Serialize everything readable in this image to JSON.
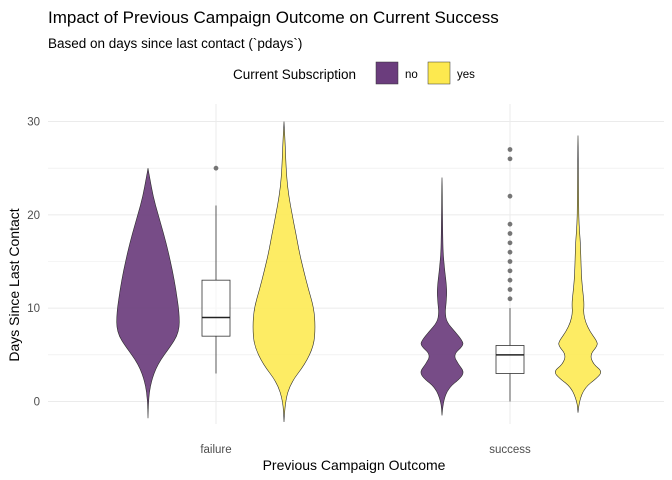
{
  "chart_data": {
    "type": "violin",
    "title": "Impact of Previous Campaign Outcome on Current Success",
    "subtitle": "Based on days since last contact (`pdays`)",
    "xlabel": "Previous Campaign Outcome",
    "ylabel": "Days Since Last Contact",
    "categories": [
      "failure",
      "success"
    ],
    "ylim": [
      -2.5,
      31
    ],
    "yticks": [
      0,
      10,
      20,
      30
    ],
    "grid": true,
    "legend": {
      "title": "Current Subscription",
      "position": "top",
      "entries": [
        {
          "label": "no",
          "color": "#6b3d7d"
        },
        {
          "label": "yes",
          "color": "#fde94f"
        }
      ]
    },
    "series": [
      {
        "name": "no",
        "color": "#6b3d7d"
      },
      {
        "name": "yes",
        "color": "#fde94f"
      }
    ],
    "violins": [
      {
        "category": "failure",
        "group": "no",
        "ymin": -1.8,
        "ymax": 25,
        "profile": [
          [
            -1.8,
            0.0
          ],
          [
            0,
            0.01
          ],
          [
            2,
            0.08
          ],
          [
            4,
            0.28
          ],
          [
            6,
            0.68
          ],
          [
            7,
            0.85
          ],
          [
            8,
            0.92
          ],
          [
            9,
            0.92
          ],
          [
            10,
            0.9
          ],
          [
            12,
            0.82
          ],
          [
            14,
            0.72
          ],
          [
            16,
            0.6
          ],
          [
            18,
            0.46
          ],
          [
            20,
            0.3
          ],
          [
            22,
            0.15
          ],
          [
            24,
            0.05
          ],
          [
            25,
            0.0
          ]
        ]
      },
      {
        "category": "failure",
        "group": "yes",
        "ymin": -2.2,
        "ymax": 30,
        "profile": [
          [
            -2.2,
            0.0
          ],
          [
            0,
            0.03
          ],
          [
            2,
            0.2
          ],
          [
            4,
            0.62
          ],
          [
            6,
            0.88
          ],
          [
            8,
            0.92
          ],
          [
            10,
            0.88
          ],
          [
            12,
            0.72
          ],
          [
            14,
            0.58
          ],
          [
            16,
            0.45
          ],
          [
            18,
            0.35
          ],
          [
            20,
            0.24
          ],
          [
            22,
            0.14
          ],
          [
            24,
            0.08
          ],
          [
            26,
            0.05
          ],
          [
            28,
            0.03
          ],
          [
            30,
            0.0
          ]
        ]
      },
      {
        "category": "success",
        "group": "no",
        "ymin": -1.5,
        "ymax": 24,
        "profile": [
          [
            -1.5,
            0.0
          ],
          [
            0,
            0.03
          ],
          [
            1.5,
            0.2
          ],
          [
            2.5,
            0.55
          ],
          [
            3.2,
            0.65
          ],
          [
            4,
            0.48
          ],
          [
            5,
            0.33
          ],
          [
            6,
            0.63
          ],
          [
            6.5,
            0.6
          ],
          [
            7.5,
            0.38
          ],
          [
            8.5,
            0.14
          ],
          [
            9.5,
            0.09
          ],
          [
            10.5,
            0.12
          ],
          [
            11.5,
            0.14
          ],
          [
            12.5,
            0.13
          ],
          [
            14,
            0.08
          ],
          [
            16,
            0.03
          ],
          [
            18,
            0.02
          ],
          [
            20,
            0.015
          ],
          [
            22,
            0.01
          ],
          [
            24,
            0.0
          ]
        ]
      },
      {
        "category": "success",
        "group": "yes",
        "ymin": -1.2,
        "ymax": 28.5,
        "profile": [
          [
            -1.2,
            0.0
          ],
          [
            0,
            0.03
          ],
          [
            1.5,
            0.2
          ],
          [
            2.5,
            0.55
          ],
          [
            3.2,
            0.72
          ],
          [
            4,
            0.45
          ],
          [
            5,
            0.35
          ],
          [
            6,
            0.58
          ],
          [
            6.5,
            0.55
          ],
          [
            7.5,
            0.35
          ],
          [
            8.5,
            0.22
          ],
          [
            9.5,
            0.16
          ],
          [
            10.5,
            0.18
          ],
          [
            11.5,
            0.15
          ],
          [
            13,
            0.11
          ],
          [
            14.5,
            0.09
          ],
          [
            16,
            0.08
          ],
          [
            17,
            0.07
          ],
          [
            19,
            0.03
          ],
          [
            21,
            0.02
          ],
          [
            23,
            0.015
          ],
          [
            26,
            0.01
          ],
          [
            28.5,
            0.0
          ]
        ]
      }
    ],
    "boxplots": [
      {
        "category": "failure",
        "q1": 7,
        "median": 9,
        "q3": 13,
        "whisker_low": 3,
        "whisker_high": 21,
        "outliers": [
          25
        ]
      },
      {
        "category": "success",
        "q1": 3,
        "median": 5,
        "q3": 6,
        "whisker_low": 0,
        "whisker_high": 10,
        "outliers": [
          11,
          12,
          13,
          14,
          15,
          16,
          17,
          18,
          19,
          22,
          26,
          27
        ]
      }
    ]
  }
}
